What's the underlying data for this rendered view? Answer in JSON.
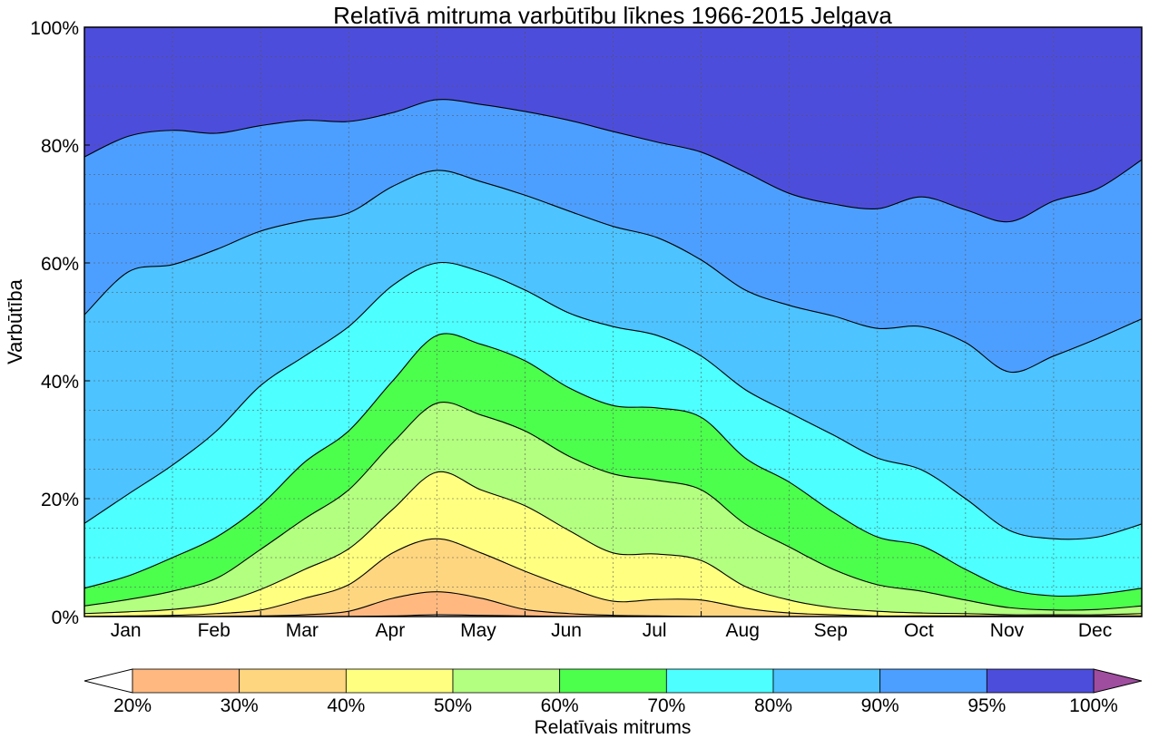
{
  "chart_data": {
    "type": "area",
    "title": "Relatīvā mitruma varbūtību līknes 1966-2015 Jelgava",
    "ylabel": "Varbūtība",
    "xlabel": "",
    "ylim": [
      0,
      100
    ],
    "xlim": [
      0,
      12
    ],
    "x": [
      0,
      0.5,
      1,
      1.5,
      2,
      2.5,
      3,
      3.5,
      4,
      4.5,
      5,
      5.5,
      6,
      6.5,
      7,
      7.5,
      8,
      8.5,
      9,
      9.5,
      10,
      10.5,
      11,
      11.5,
      12
    ],
    "yticks": [
      "0%",
      "20%",
      "40%",
      "60%",
      "80%",
      "100%"
    ],
    "ytick_values": [
      0,
      20,
      40,
      60,
      80,
      100
    ],
    "months": [
      "Jan",
      "Feb",
      "Mar",
      "Apr",
      "May",
      "Jun",
      "Jul",
      "Aug",
      "Sep",
      "Oct",
      "Nov",
      "Dec"
    ],
    "grid": true,
    "series": [
      {
        "name": "95%",
        "values": [
          78,
          81.5,
          82.5,
          82,
          83.3,
          84.2,
          84,
          85.5,
          87.7,
          86.9,
          85.7,
          84.2,
          82.3,
          80.5,
          78.8,
          75.4,
          71.8,
          70,
          69.2,
          71.2,
          69,
          67,
          70.5,
          72.6,
          77.5
        ]
      },
      {
        "name": "90%",
        "values": [
          51.2,
          58.5,
          59.7,
          62.3,
          65.4,
          67.2,
          68.5,
          73,
          75.7,
          73.8,
          71.5,
          68.8,
          66.2,
          64.3,
          60.5,
          55.4,
          52.8,
          51,
          48.9,
          49.2,
          46.5,
          41.5,
          44.2,
          47.2,
          50.5
        ]
      },
      {
        "name": "80%",
        "values": [
          15.8,
          20.8,
          25.7,
          31.5,
          39.2,
          44.2,
          49.2,
          56.2,
          60,
          58.5,
          55.4,
          51.5,
          49.2,
          47.7,
          44.2,
          38.5,
          34.6,
          30.8,
          26.9,
          24.9,
          20,
          14.6,
          13.2,
          13.5,
          15.7
        ]
      },
      {
        "name": "70%",
        "values": [
          4.8,
          6.9,
          10,
          13.5,
          18.9,
          26.2,
          31.5,
          40,
          47.7,
          46.2,
          43.4,
          38.8,
          35.8,
          35.4,
          33.8,
          26.9,
          22.8,
          17.7,
          13.5,
          12,
          8,
          4.6,
          3.5,
          3.8,
          4.8
        ]
      },
      {
        "name": "60%",
        "values": [
          1.8,
          2.9,
          4.3,
          6.5,
          11.4,
          16.6,
          21.5,
          29.5,
          36.2,
          34.2,
          31.5,
          27.2,
          24.2,
          23.1,
          21.5,
          15.7,
          11.8,
          8,
          5.4,
          4.3,
          2.8,
          1.5,
          1.1,
          1.2,
          1.8
        ]
      },
      {
        "name": "50%",
        "values": [
          0.5,
          0.8,
          1.2,
          2.2,
          4.6,
          8,
          11.5,
          18.2,
          24.5,
          21.5,
          18.8,
          14.6,
          10.8,
          10.6,
          9.5,
          5.1,
          2.8,
          1.5,
          0.9,
          0.6,
          0.5,
          0.3,
          0.3,
          0.3,
          0.5
        ]
      },
      {
        "name": "40%",
        "values": [
          0,
          0.1,
          0.2,
          0.5,
          1.1,
          3.1,
          5.4,
          10.8,
          13.2,
          10.8,
          7.7,
          4.9,
          2.6,
          2.9,
          2.8,
          1.4,
          0.6,
          0.3,
          0.1,
          0.1,
          0.1,
          0.1,
          0.1,
          0.1,
          0.1
        ]
      },
      {
        "name": "30%",
        "values": [
          0,
          0,
          0,
          0,
          0.1,
          0.3,
          0.9,
          3.1,
          4.2,
          3.1,
          1.2,
          0.5,
          0.2,
          0.1,
          0,
          0,
          0,
          0,
          0,
          0,
          0,
          0,
          0,
          0,
          0
        ]
      },
      {
        "name": "20%",
        "values": [
          0,
          0,
          0,
          0,
          0,
          0,
          0,
          0.1,
          0.3,
          0.2,
          0.1,
          0,
          0,
          0,
          0,
          0,
          0,
          0,
          0,
          0,
          0,
          0,
          0,
          0,
          0
        ]
      }
    ],
    "colorbar": {
      "label": "Relatīvais mitrums",
      "ticks": [
        "20%",
        "30%",
        "40%",
        "50%",
        "60%",
        "70%",
        "80%",
        "90%",
        "95%",
        "100%"
      ],
      "colors": [
        "#ffb980",
        "#ffd680",
        "#ffff80",
        "#b3ff80",
        "#4dff4d",
        "#4dffff",
        "#4dc3ff",
        "#4d9fff",
        "#4d4ddb"
      ],
      "under_color": "#ffffff",
      "over_color": "#9f4d9f"
    }
  }
}
